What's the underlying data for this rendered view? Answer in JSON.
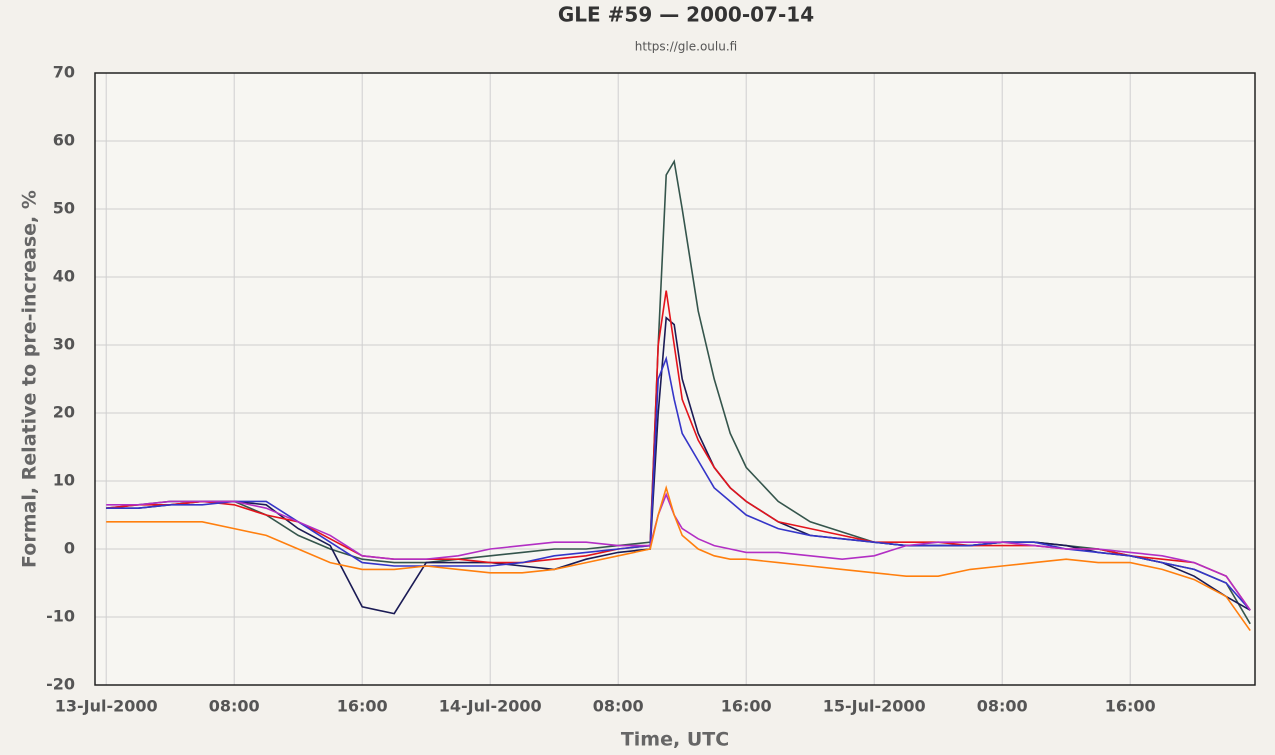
{
  "chart_data": {
    "type": "line",
    "title": "GLE #59 — 2000-07-14",
    "subtitle": "https://gle.oulu.fi",
    "x_label": "Time, UTC",
    "y_label": "Formal, Relative to pre-increase, %",
    "x": [
      0,
      2,
      4,
      6,
      8,
      10,
      12,
      14,
      16,
      18,
      20,
      22,
      24,
      26,
      28,
      30,
      32,
      34,
      34.5,
      35,
      35.5,
      36,
      37,
      38,
      39,
      40,
      42,
      44,
      46,
      48,
      50,
      52,
      54,
      56,
      58,
      60,
      62,
      64,
      66,
      68,
      70,
      71.5
    ],
    "xlim": [
      -0.7,
      71.8
    ],
    "xticks": [
      {
        "value": 0,
        "label": "13-Jul-2000"
      },
      {
        "value": 8,
        "label": "08:00"
      },
      {
        "value": 16,
        "label": "16:00"
      },
      {
        "value": 24,
        "label": "14-Jul-2000"
      },
      {
        "value": 32,
        "label": "08:00"
      },
      {
        "value": 40,
        "label": "16:00"
      },
      {
        "value": 48,
        "label": "15-Jul-2000"
      },
      {
        "value": 56,
        "label": "08:00"
      },
      {
        "value": 64,
        "label": "16:00"
      }
    ],
    "ylim": [
      -20,
      70
    ],
    "yticks": [
      -20,
      -10,
      0,
      10,
      20,
      30,
      40,
      50,
      60,
      70
    ],
    "grid": true,
    "series": [
      {
        "color": "#35554c",
        "values": [
          6,
          6.5,
          7,
          7,
          7,
          5,
          2,
          0,
          -1.5,
          -2,
          -2,
          -1.5,
          -1,
          -0.5,
          0,
          0,
          0.5,
          1,
          30,
          55,
          57,
          50,
          35,
          25,
          17,
          12,
          7,
          4,
          2.5,
          1,
          0.5,
          0.5,
          0.5,
          1,
          1,
          0.5,
          0,
          -1,
          -2,
          -3,
          -5,
          -11
        ]
      },
      {
        "color": "#1b1b55",
        "values": [
          6,
          6,
          6.5,
          7,
          7,
          6.5,
          3,
          0.5,
          -8.5,
          -9.5,
          -2,
          -2,
          -2,
          -2.5,
          -3,
          -1.5,
          -0.5,
          0,
          20,
          34,
          33,
          25,
          17,
          12,
          9,
          7,
          4,
          2,
          1.5,
          1,
          0.5,
          0.5,
          0.5,
          1,
          1,
          0.5,
          -0.5,
          -1,
          -2,
          -4,
          -7,
          -9
        ]
      },
      {
        "color": "#e3141c",
        "values": [
          6,
          6.5,
          6.5,
          7,
          6.5,
          5,
          4,
          1.5,
          -1,
          -1.5,
          -1.5,
          -1.5,
          -2,
          -2,
          -1.5,
          -1,
          0,
          0.5,
          30,
          38,
          30,
          22,
          16,
          12,
          9,
          7,
          4,
          3,
          2,
          1,
          1,
          1,
          0.5,
          0.5,
          0.5,
          0,
          0,
          -1,
          -1.5,
          -2,
          -4,
          -9
        ]
      },
      {
        "color": "#3535c8",
        "values": [
          6,
          6,
          6.5,
          6.5,
          7,
          7,
          4,
          1,
          -2,
          -2.5,
          -2.5,
          -2.5,
          -2.5,
          -2,
          -1,
          -0.5,
          0,
          0.5,
          25,
          28,
          22,
          17,
          13,
          9,
          7,
          5,
          3,
          2,
          1.5,
          1,
          0.5,
          0.5,
          0.5,
          1,
          1,
          0,
          -0.5,
          -1,
          -2,
          -3,
          -5,
          -9
        ]
      },
      {
        "color": "#b22fc4",
        "values": [
          6.5,
          6.5,
          7,
          7,
          7,
          6,
          4,
          2,
          -1,
          -1.5,
          -1.5,
          -1,
          0,
          0.5,
          1,
          1,
          0.5,
          0.5,
          5,
          8,
          5,
          3,
          1.5,
          0.5,
          0,
          -0.5,
          -0.5,
          -1,
          -1.5,
          -1,
          0.5,
          1,
          1,
          1,
          0.5,
          0,
          0,
          -0.5,
          -1,
          -2,
          -4,
          -9
        ]
      },
      {
        "color": "#ff7f0e",
        "values": [
          4,
          4,
          4,
          4,
          3,
          2,
          0,
          -2,
          -3,
          -3,
          -2.5,
          -3,
          -3.5,
          -3.5,
          -3,
          -2,
          -1,
          0,
          5,
          9,
          5,
          2,
          0,
          -1,
          -1.5,
          -1.5,
          -2,
          -2.5,
          -3,
          -3.5,
          -4,
          -4,
          -3,
          -2.5,
          -2,
          -1.5,
          -2,
          -2,
          -3,
          -4.5,
          -7,
          -12
        ]
      }
    ]
  }
}
